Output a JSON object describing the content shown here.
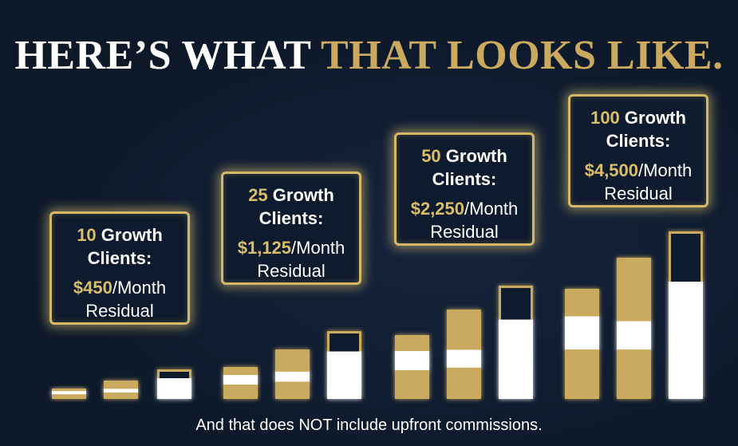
{
  "title": {
    "white": "HERE’S WHAT",
    "gold": "THAT LOOKS LIKE."
  },
  "boxes": [
    {
      "count": "10",
      "label": "Growth",
      "label2": "Clients:",
      "amount": "$450",
      "rate": "/Month",
      "term": "Residual"
    },
    {
      "count": "25",
      "label": "Growth",
      "label2": "Clients:",
      "amount": "$1,125",
      "rate": "/Month",
      "term": "Residual"
    },
    {
      "count": "50",
      "label": "Growth",
      "label2": "Clients:",
      "amount": "$2,250",
      "rate": "/Month",
      "term": "Residual"
    },
    {
      "count": "100",
      "label": "Growth",
      "label2": "Clients:",
      "amount": "$4,500",
      "rate": "/Month",
      "term": "Residual"
    }
  ],
  "footnote": "And that does NOT include upfront commissions."
}
